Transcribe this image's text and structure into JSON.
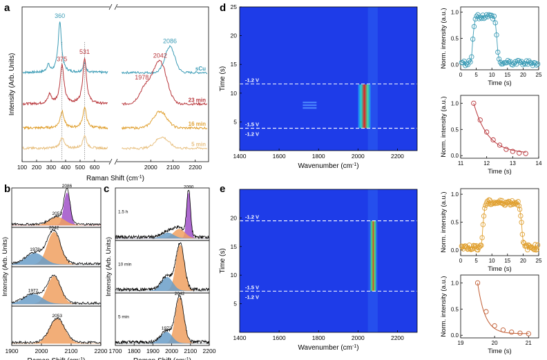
{
  "chart_data": [
    {
      "panel": "a",
      "type": "line",
      "xlabel": "Raman Shift (cm",
      "xlabel_sup": "-1",
      "xlabel_end": ")",
      "ylabel": "Intensity (Arb. Units)",
      "x_ticks_left": [
        100,
        200,
        300,
        400,
        500,
        600
      ],
      "x_ticks_right": [
        2000,
        2100,
        2200
      ],
      "xlim_left": [
        100,
        700
      ],
      "xlim_right": [
        1850,
        2260
      ],
      "series": [
        {
          "name": "sCu",
          "color": "#3a9bb5",
          "baseline": 0.92,
          "peaks_left": [
            [
              360,
              0.55,
              14
            ],
            [
              530,
              0.1,
              12
            ],
            [
              280,
              0.08,
              12
            ]
          ],
          "peaks_right": [
            [
              2086,
              0.28,
              22
            ]
          ],
          "labels": [
            {
              "x": 360,
              "text": "360"
            },
            {
              "x": 2086,
              "text": "2086"
            }
          ]
        },
        {
          "name": "23 min",
          "color": "#b8353a",
          "baseline": 0.58,
          "peaks_left": [
            [
              375,
              0.42,
              16
            ],
            [
              531,
              0.5,
              15
            ],
            [
              290,
              0.1,
              14
            ]
          ],
          "peaks_right": [
            [
              2042,
              0.45,
              30
            ],
            [
              1978,
              0.18,
              28
            ]
          ],
          "labels": [
            {
              "x": 375,
              "text": "375"
            },
            {
              "x": 531,
              "text": "531"
            },
            {
              "x": 1978,
              "text": "1978"
            },
            {
              "x": 2042,
              "text": "2042"
            }
          ]
        },
        {
          "name": "16 min",
          "color": "#e0a030",
          "baseline": 0.32,
          "peaks_left": [
            [
              375,
              0.18,
              16
            ],
            [
              531,
              0.22,
              15
            ]
          ],
          "peaks_right": [
            [
              2042,
              0.18,
              30
            ]
          ],
          "labels": []
        },
        {
          "name": "5 min",
          "color": "#e8c080",
          "baseline": 0.1,
          "peaks_left": [
            [
              375,
              0.12,
              16
            ],
            [
              531,
              0.14,
              15
            ]
          ],
          "peaks_right": [
            [
              2050,
              0.12,
              30
            ]
          ],
          "labels": []
        }
      ]
    },
    {
      "panel": "b",
      "type": "line",
      "xlabel": "Raman Shift (cm",
      "xlabel_sup": "-1",
      "xlabel_end": ")",
      "ylabel": "Intensity (Arb. Units)",
      "x_ticks": [
        1900,
        2000,
        2100,
        2200
      ],
      "xlim": [
        1900,
        2200
      ],
      "subpanels": [
        {
          "components": [
            [
              2086,
              1.0,
              10,
              "#a050c8"
            ],
            [
              2053,
              0.25,
              25,
              "#f0a060"
            ]
          ],
          "labels": [
            {
              "x": 2053,
              "text": "2053"
            },
            {
              "x": 2086,
              "text": "2086"
            }
          ]
        },
        {
          "components": [
            [
              2042,
              1.0,
              22,
              "#f0a060"
            ],
            [
              1978,
              0.35,
              30,
              "#6a9ec8"
            ]
          ],
          "labels": [
            {
              "x": 1978,
              "text": "1978"
            },
            {
              "x": 2042,
              "text": "2042"
            }
          ]
        },
        {
          "components": [
            [
              2042,
              0.85,
              22,
              "#f0a060"
            ],
            [
              1972,
              0.3,
              30,
              "#6a9ec8"
            ]
          ],
          "labels": [
            {
              "x": 1972,
              "text": "1972"
            }
          ]
        },
        {
          "components": [
            [
              2053,
              0.75,
              25,
              "#f0a060"
            ]
          ],
          "labels": [
            {
              "x": 2053,
              "text": "2053"
            }
          ]
        }
      ]
    },
    {
      "panel": "c",
      "type": "line",
      "xlabel": "Raman Shift (cm",
      "xlabel_sup": "-1",
      "xlabel_end": ")",
      "ylabel": "Intensity (Arb. Units)",
      "x_ticks": [
        1700,
        1800,
        1900,
        2000,
        2100,
        2200
      ],
      "xlim": [
        1700,
        2200
      ],
      "subpanels": [
        {
          "name": "1.5 h",
          "components": [
            [
              2090,
              1.0,
              10,
              "#a050c8"
            ],
            [
              2040,
              0.2,
              30,
              "#f0a060"
            ],
            [
              1980,
              0.12,
              30,
              "#6a9ec8"
            ]
          ],
          "labels": [
            {
              "x": 2090,
              "text": "2090"
            }
          ]
        },
        {
          "name": "10 min",
          "components": [
            [
              2045,
              1.0,
              22,
              "#f0a060"
            ],
            [
              1975,
              0.3,
              30,
              "#6a9ec8"
            ]
          ],
          "labels": []
        },
        {
          "name": "5 min",
          "components": [
            [
              2042,
              1.0,
              22,
              "#f0a060"
            ],
            [
              1972,
              0.25,
              30,
              "#6a9ec8"
            ]
          ],
          "labels": [
            {
              "x": 1972,
              "text": "1972"
            },
            {
              "x": 2042,
              "text": "2042"
            }
          ]
        }
      ]
    },
    {
      "panel": "d",
      "type": "heatmap",
      "xlabel": "Wavenumber (cm",
      "xlabel_sup": "-1",
      "xlabel_end": ")",
      "ylabel": "Time (s)",
      "x_ticks": [
        1400,
        1600,
        1800,
        2000,
        2200
      ],
      "y_ticks": [
        5,
        10,
        15,
        20,
        25
      ],
      "xlim": [
        1400,
        2300
      ],
      "ylim": [
        0,
        25
      ],
      "band_x": [
        2000,
        2065
      ],
      "band_y": [
        3.9,
        11.5
      ],
      "side_band_x": [
        1720,
        1790
      ],
      "side_band_y": [
        7.5,
        8.5
      ],
      "potential_lines": [
        {
          "t": 11.6,
          "labels": [
            {
              "text": "-1.2 V",
              "side": "above"
            }
          ]
        },
        {
          "t": 3.9,
          "labels": [
            {
              "text": "-1.5 V",
              "side": "above"
            },
            {
              "text": "-1.2 V",
              "side": "below"
            }
          ]
        }
      ]
    },
    {
      "panel": "e",
      "type": "heatmap",
      "xlabel": "Wavenumber (cm",
      "xlabel_sup": "-1",
      "xlabel_end": ")",
      "ylabel": "Time (s)",
      "x_ticks": [
        1400,
        1600,
        1800,
        2000,
        2200
      ],
      "y_ticks": [
        5,
        10,
        15,
        20
      ],
      "xlim": [
        1400,
        2300
      ],
      "ylim": [
        0,
        25
      ],
      "band_x": [
        2060,
        2095
      ],
      "band_y": [
        7.2,
        19.5
      ],
      "potential_lines": [
        {
          "t": 19.5,
          "labels": [
            {
              "text": "-1.2 V",
              "side": "above"
            }
          ]
        },
        {
          "t": 7.2,
          "labels": [
            {
              "text": "-1.5 V",
              "side": "above"
            },
            {
              "text": "-1.2 V",
              "side": "below"
            }
          ]
        }
      ]
    },
    {
      "panel": "d-top",
      "type": "scatter",
      "xlabel": "Time (s)",
      "ylabel": "Norm. intensity (a.u.)",
      "x_ticks": [
        0,
        5,
        10,
        15,
        20,
        25
      ],
      "y_ticks": [
        0.0,
        0.5,
        1.0
      ],
      "xlim": [
        0,
        25
      ],
      "ylim": [
        -0.1,
        1.1
      ],
      "color": "#3a9bb5",
      "step": {
        "on": 3.9,
        "off": 11.6,
        "low": 0.03,
        "high": 0.92,
        "n": 62
      }
    },
    {
      "panel": "d-bottom",
      "type": "scatter",
      "xlabel": "Time (s)",
      "ylabel": "Norm. intensity (a.u.)",
      "x_ticks": [
        11,
        12,
        13,
        14
      ],
      "y_ticks": [
        0.0,
        0.5,
        1.0
      ],
      "xlim": [
        11,
        14
      ],
      "ylim": [
        -0.05,
        1.15
      ],
      "color": "#b8353a",
      "x": [
        11.5,
        11.75,
        12.0,
        12.25,
        12.5,
        12.75,
        13.0,
        13.25,
        13.5
      ],
      "y": [
        1.0,
        0.68,
        0.45,
        0.3,
        0.2,
        0.12,
        0.08,
        0.05,
        0.04
      ],
      "fit_tau": 0.55
    },
    {
      "panel": "e-top",
      "type": "scatter",
      "xlabel": "Time (s)",
      "ylabel": "Norm. intensity (a.u.)",
      "x_ticks": [
        0,
        5,
        10,
        15,
        20,
        25
      ],
      "y_ticks": [
        0.0,
        0.5,
        1.0
      ],
      "xlim": [
        0,
        25
      ],
      "ylim": [
        -0.1,
        1.1
      ],
      "color": "#e0a030",
      "step": {
        "on": 7.2,
        "off": 19.5,
        "low": 0.05,
        "high": 0.85,
        "n": 90
      }
    },
    {
      "panel": "e-bottom",
      "type": "scatter",
      "xlabel": "Time (s)",
      "ylabel": "Norm. intensity (a.u.)",
      "x_ticks": [
        19,
        20,
        21
      ],
      "y_ticks": [
        0.0,
        0.5,
        1.0
      ],
      "xlim": [
        19,
        21.3
      ],
      "ylim": [
        -0.05,
        1.15
      ],
      "color": "#c05a30",
      "x": [
        19.5,
        19.75,
        20.0,
        20.25,
        20.5,
        20.75,
        21.0
      ],
      "y": [
        1.0,
        0.45,
        0.18,
        0.1,
        0.06,
        0.04,
        0.03
      ],
      "fit_tau": 0.22
    }
  ],
  "panel_letters": [
    "a",
    "b",
    "c",
    "d",
    "e"
  ]
}
